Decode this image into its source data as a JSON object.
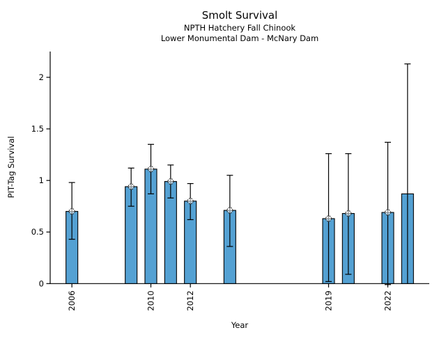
{
  "chart_data": {
    "type": "bar",
    "title": "Smolt Survival",
    "subtitle1": "NPTH Hatchery Fall Chinook",
    "subtitle2": "Lower Monumental Dam - McNary Dam",
    "xlabel": "Year",
    "ylabel": "PIT-Tag Survival",
    "x_ticks": [
      2006,
      2010,
      2012,
      2019,
      2022
    ],
    "y_ticks": [
      0,
      0.5,
      1,
      1.5,
      2
    ],
    "xlim": [
      2004.9,
      2024.1
    ],
    "ylim": [
      0,
      2.25
    ],
    "bar_color": "#54a1d3",
    "bar_edge_color": "#000000",
    "error_bar_color": "#000000",
    "legend": "none",
    "grid": false,
    "series": [
      {
        "year": 2006,
        "value": 0.7,
        "ci_low": 0.43,
        "ci_high": 0.98,
        "marker": true,
        "cap_low": true
      },
      {
        "year": 2009,
        "value": 0.94,
        "ci_low": 0.75,
        "ci_high": 1.12,
        "marker": true,
        "cap_low": true
      },
      {
        "year": 2010,
        "value": 1.11,
        "ci_low": 0.87,
        "ci_high": 1.35,
        "marker": true,
        "cap_low": true
      },
      {
        "year": 2011,
        "value": 0.99,
        "ci_low": 0.83,
        "ci_high": 1.15,
        "marker": true,
        "cap_low": true
      },
      {
        "year": 2012,
        "value": 0.8,
        "ci_low": 0.62,
        "ci_high": 0.97,
        "marker": true,
        "cap_low": true
      },
      {
        "year": 2014,
        "value": 0.71,
        "ci_low": 0.36,
        "ci_high": 1.05,
        "marker": true,
        "cap_low": true
      },
      {
        "year": 2019,
        "value": 0.63,
        "ci_low": 0.02,
        "ci_high": 1.26,
        "marker": true,
        "cap_low": true
      },
      {
        "year": 2020,
        "value": 0.68,
        "ci_low": 0.09,
        "ci_high": 1.26,
        "marker": true,
        "cap_low": true
      },
      {
        "year": 2022,
        "value": 0.69,
        "ci_low": -0.01,
        "ci_high": 1.37,
        "marker": true,
        "cap_low": true
      },
      {
        "year": 2023,
        "value": 0.87,
        "ci_low": 0.0,
        "ci_high": 2.13,
        "marker": false,
        "cap_low": false
      }
    ]
  }
}
